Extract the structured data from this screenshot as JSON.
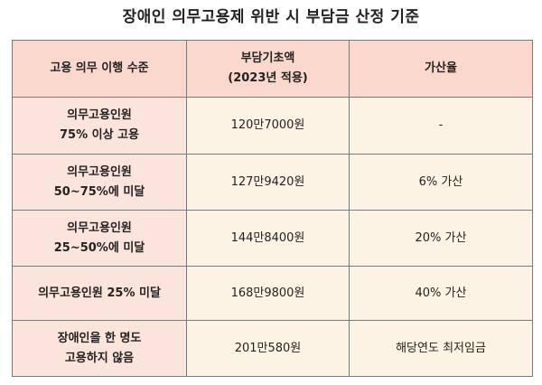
{
  "title": "장애인 의무고용제 위반 시 부담금 산정 기준",
  "table": {
    "headers": {
      "level": "고용 의무 이행 수준",
      "base_line1": "부담기초액",
      "base_line2": "(2023년 적용)",
      "surcharge": "가산율"
    },
    "rows": [
      {
        "level_line1": "의무고용인원",
        "level_line2": "75% 이상 고용",
        "base": "120만7000원",
        "surcharge": "-"
      },
      {
        "level_line1": "의무고용인원",
        "level_line2": "50~75%에 미달",
        "base": "127만9420원",
        "surcharge": "6% 가산"
      },
      {
        "level_line1": "의무고용인원",
        "level_line2": "25~50%에 미달",
        "base": "144만8400원",
        "surcharge": "20% 가산"
      },
      {
        "level_line1": "의무고용인원 25% 미달",
        "level_line2": "",
        "base": "168만9800원",
        "surcharge": "40% 가산"
      },
      {
        "level_line1": "장애인을 한 명도",
        "level_line2": "고용하지 않음",
        "base": "201만580원",
        "surcharge": "해당연도 최저임금"
      }
    ]
  }
}
